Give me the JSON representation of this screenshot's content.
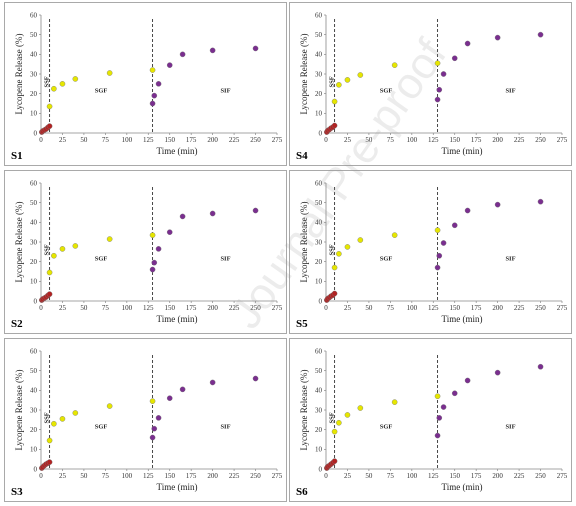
{
  "colors": {
    "sgf_early": "#b22222",
    "sgf": "#e6e600",
    "sif": "#7a2e8f",
    "marker_edge": "#777777",
    "axis": "#888888",
    "divider": "#333333"
  },
  "watermark": "Journal Pre-proof",
  "chart_data": [
    {
      "label": "S1",
      "type": "scatter",
      "xlabel": "Time (min)",
      "ylabel": "Lycopene Release (%)",
      "xlim": [
        0,
        275
      ],
      "ylim": [
        0,
        60
      ],
      "xticks": [
        0,
        25,
        50,
        75,
        100,
        125,
        150,
        175,
        200,
        225,
        250,
        275
      ],
      "yticks": [
        0,
        10,
        20,
        30,
        40,
        50,
        60
      ],
      "phase_lines": [
        10,
        130
      ],
      "phases": [
        "SSF",
        "SGF",
        "SIF"
      ],
      "series": [
        {
          "phase": "SSF",
          "x": [
            1,
            2,
            4,
            6,
            8,
            10
          ],
          "y": [
            0.5,
            1.0,
            1.5,
            2.0,
            2.8,
            3.5
          ]
        },
        {
          "phase": "SGF",
          "x": [
            10,
            15,
            25,
            40,
            80,
            130
          ],
          "y": [
            13.5,
            22.5,
            25.0,
            27.5,
            30.5,
            32.0
          ]
        },
        {
          "phase": "SIF",
          "x": [
            130,
            132,
            137,
            150,
            165,
            200,
            250
          ],
          "y": [
            15.0,
            19.0,
            25.0,
            34.5,
            40.0,
            42.0,
            43.0
          ]
        }
      ]
    },
    {
      "label": "S4",
      "type": "scatter",
      "xlabel": "Time (min)",
      "ylabel": "Lycopene Release (%)",
      "xlim": [
        0,
        275
      ],
      "ylim": [
        0,
        60
      ],
      "xticks": [
        0,
        25,
        50,
        75,
        100,
        125,
        150,
        175,
        200,
        225,
        250,
        275
      ],
      "yticks": [
        0,
        10,
        20,
        30,
        40,
        50,
        60
      ],
      "phase_lines": [
        10,
        130
      ],
      "phases": [
        "SSF",
        "SGF",
        "SIF"
      ],
      "series": [
        {
          "phase": "SSF",
          "x": [
            1,
            2,
            4,
            6,
            8,
            10
          ],
          "y": [
            0.5,
            1.2,
            1.8,
            2.5,
            3.0,
            3.8
          ]
        },
        {
          "phase": "SGF",
          "x": [
            10,
            15,
            25,
            40,
            80,
            130
          ],
          "y": [
            16.0,
            24.5,
            27.0,
            29.5,
            34.5,
            35.5
          ]
        },
        {
          "phase": "SIF",
          "x": [
            130,
            132,
            137,
            150,
            165,
            200,
            250
          ],
          "y": [
            17.0,
            22.0,
            30.0,
            38.0,
            45.5,
            48.5,
            50.0
          ]
        }
      ]
    },
    {
      "label": "S2",
      "type": "scatter",
      "xlabel": "Time (min)",
      "ylabel": "Lycopene Release (%)",
      "xlim": [
        0,
        275
      ],
      "ylim": [
        0,
        60
      ],
      "xticks": [
        0,
        25,
        50,
        75,
        100,
        125,
        150,
        175,
        200,
        225,
        250,
        275
      ],
      "yticks": [
        0,
        10,
        20,
        30,
        40,
        50,
        60
      ],
      "phase_lines": [
        10,
        130
      ],
      "phases": [
        "SSF",
        "SGF",
        "SIF"
      ],
      "series": [
        {
          "phase": "SSF",
          "x": [
            1,
            2,
            4,
            6,
            8,
            10
          ],
          "y": [
            0.5,
            1.0,
            1.5,
            2.0,
            2.8,
            3.5
          ]
        },
        {
          "phase": "SGF",
          "x": [
            10,
            15,
            25,
            40,
            80,
            130
          ],
          "y": [
            14.5,
            23.0,
            26.5,
            28.0,
            31.5,
            33.5
          ]
        },
        {
          "phase": "SIF",
          "x": [
            130,
            132,
            137,
            150,
            165,
            200,
            250
          ],
          "y": [
            16.0,
            19.5,
            26.5,
            35.0,
            43.0,
            44.5,
            46.0
          ]
        }
      ]
    },
    {
      "label": "S5",
      "type": "scatter",
      "xlabel": "Time (min)",
      "ylabel": "Lycopene Release (%)",
      "xlim": [
        0,
        275
      ],
      "ylim": [
        0,
        60
      ],
      "xticks": [
        0,
        25,
        50,
        75,
        100,
        125,
        150,
        175,
        200,
        225,
        250,
        275
      ],
      "yticks": [
        0,
        10,
        20,
        30,
        40,
        50,
        60
      ],
      "phase_lines": [
        10,
        130
      ],
      "phases": [
        "SSF",
        "SGF",
        "SIF"
      ],
      "series": [
        {
          "phase": "SSF",
          "x": [
            1,
            2,
            4,
            6,
            8,
            10
          ],
          "y": [
            0.5,
            1.2,
            1.8,
            2.5,
            3.0,
            3.8
          ]
        },
        {
          "phase": "SGF",
          "x": [
            10,
            15,
            25,
            40,
            80,
            130
          ],
          "y": [
            17.0,
            24.0,
            27.5,
            31.0,
            33.5,
            36.0
          ]
        },
        {
          "phase": "SIF",
          "x": [
            130,
            132,
            137,
            150,
            165,
            200,
            250
          ],
          "y": [
            17.0,
            23.0,
            29.5,
            38.5,
            46.0,
            49.0,
            50.5
          ]
        }
      ]
    },
    {
      "label": "S3",
      "type": "scatter",
      "xlabel": "Time (min)",
      "ylabel": "Lycopene Release (%)",
      "xlim": [
        0,
        275
      ],
      "ylim": [
        0,
        60
      ],
      "xticks": [
        0,
        25,
        50,
        75,
        100,
        125,
        150,
        175,
        200,
        225,
        250,
        275
      ],
      "yticks": [
        0,
        10,
        20,
        30,
        40,
        50,
        60
      ],
      "phase_lines": [
        10,
        130
      ],
      "phases": [
        "SSF",
        "SGF",
        "SIF"
      ],
      "series": [
        {
          "phase": "SSF",
          "x": [
            1,
            2,
            4,
            6,
            8,
            10
          ],
          "y": [
            0.5,
            1.0,
            1.8,
            2.5,
            3.0,
            3.5
          ]
        },
        {
          "phase": "SGF",
          "x": [
            10,
            15,
            25,
            40,
            80,
            130
          ],
          "y": [
            14.5,
            23.0,
            25.5,
            28.5,
            32.0,
            34.5
          ]
        },
        {
          "phase": "SIF",
          "x": [
            130,
            132,
            137,
            150,
            165,
            200,
            250
          ],
          "y": [
            16.0,
            20.5,
            26.0,
            36.0,
            40.5,
            44.0,
            46.0
          ]
        }
      ]
    },
    {
      "label": "S6",
      "type": "scatter",
      "xlabel": "Time (min)",
      "ylabel": "Lycopene Release (%)",
      "xlim": [
        0,
        275
      ],
      "ylim": [
        0,
        60
      ],
      "xticks": [
        0,
        25,
        50,
        75,
        100,
        125,
        150,
        175,
        200,
        225,
        250,
        275
      ],
      "yticks": [
        0,
        10,
        20,
        30,
        40,
        50,
        60
      ],
      "phase_lines": [
        10,
        130
      ],
      "phases": [
        "SSF",
        "SGF",
        "SIF"
      ],
      "series": [
        {
          "phase": "SSF",
          "x": [
            1,
            2,
            4,
            6,
            8,
            10
          ],
          "y": [
            0.5,
            1.2,
            1.8,
            2.5,
            3.2,
            4.0
          ]
        },
        {
          "phase": "SGF",
          "x": [
            10,
            15,
            25,
            40,
            80,
            130
          ],
          "y": [
            19.0,
            23.5,
            27.5,
            31.0,
            34.0,
            37.0
          ]
        },
        {
          "phase": "SIF",
          "x": [
            130,
            132,
            137,
            150,
            165,
            200,
            250
          ],
          "y": [
            17.0,
            26.0,
            31.5,
            38.5,
            45.0,
            49.0,
            52.0
          ]
        }
      ]
    }
  ]
}
